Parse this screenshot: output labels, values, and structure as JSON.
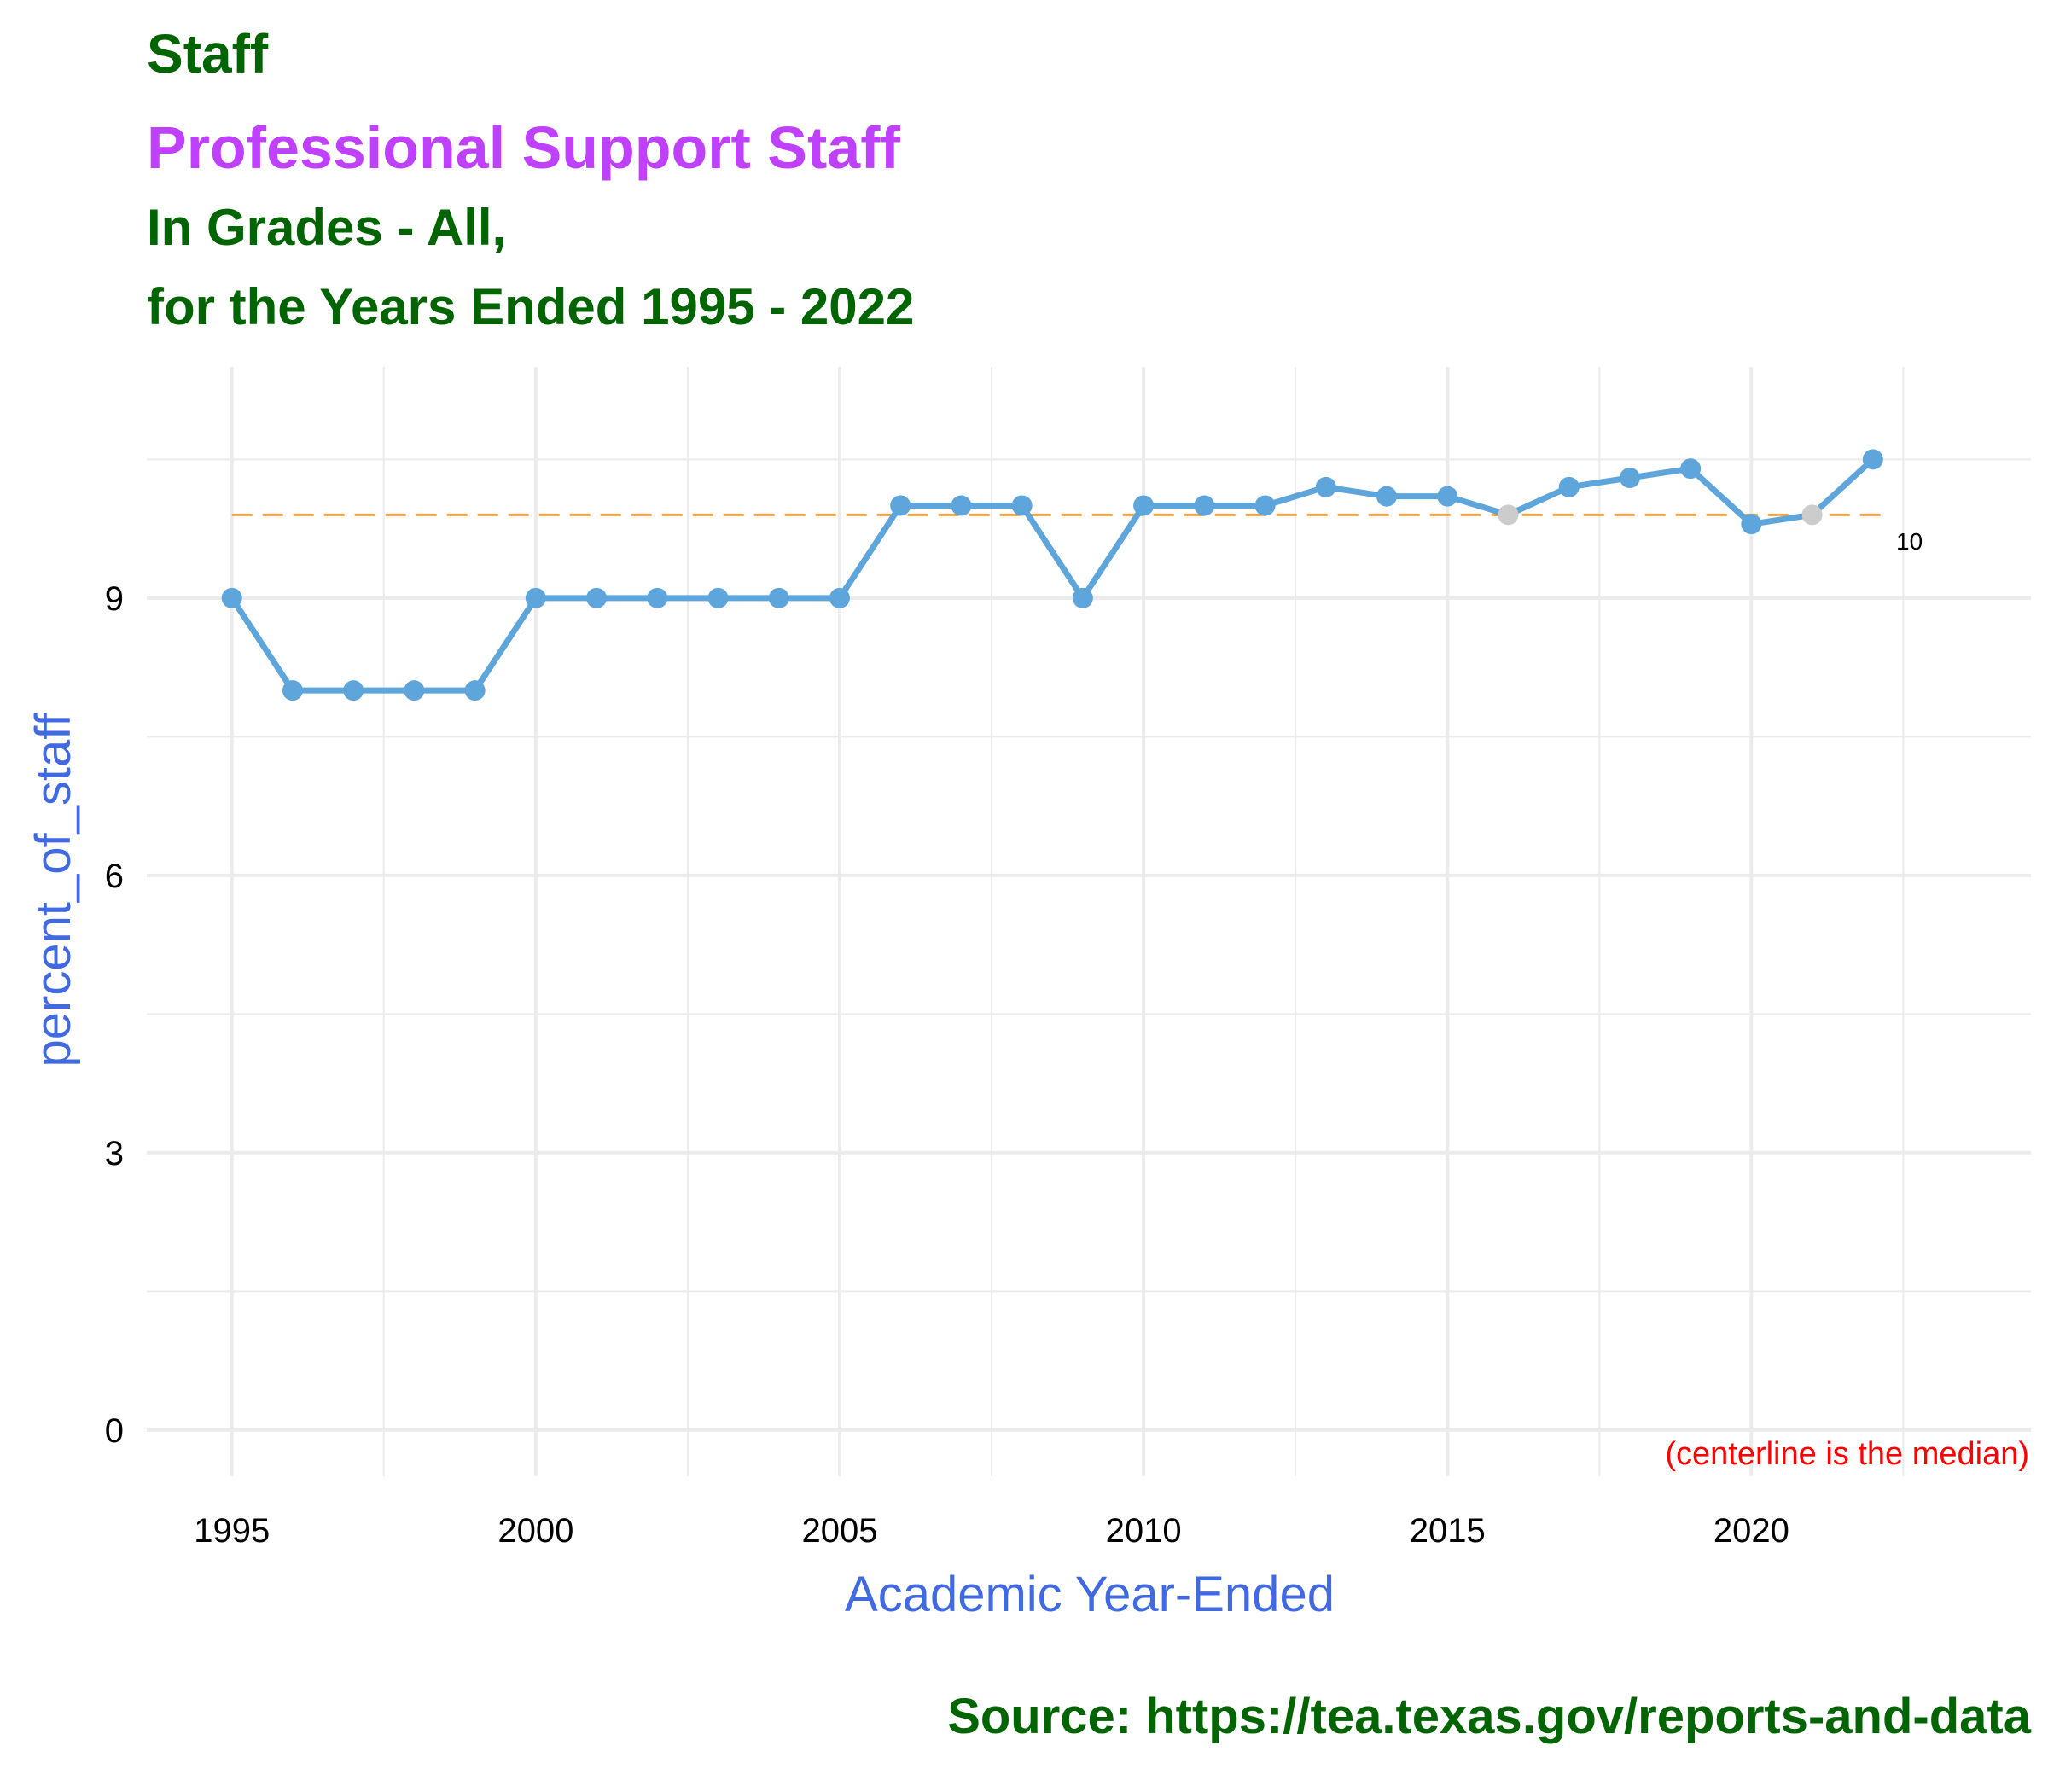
{
  "chart_data": {
    "type": "line",
    "title": "Staff",
    "subtitle": "Professional Support Staff",
    "subtitle2": "In Grades - All,",
    "subtitle3": "for the Years Ended 1995 - 2022",
    "xlabel": "Academic Year-Ended",
    "ylabel": "percent_of_staff",
    "caption": "Source:  https://tea.texas.gov/reports-and-data",
    "annotation": "(centerline is the median)",
    "median_label": "10",
    "median": 9.9,
    "xlim": [
      1993.6,
      2024.6
    ],
    "ylim": [
      -0.5,
      11.5
    ],
    "x_ticks": [
      1995,
      2000,
      2005,
      2010,
      2015,
      2020
    ],
    "x_tick_labels": [
      "1995",
      "2000",
      "2005",
      "2010",
      "2015",
      "2020"
    ],
    "y_ticks": [
      0,
      3,
      6,
      9
    ],
    "y_tick_labels": [
      "0",
      "3",
      "6",
      "9"
    ],
    "grid": true,
    "colors": {
      "title": "#006400",
      "subtitle": "#bf40ff",
      "axis_label": "#4169e1",
      "line": "#5da5da",
      "highlight_point": "#cccccc",
      "median_line": "#f5a442",
      "annotation": "#ff0000",
      "grid": "#ebebeb"
    },
    "series": [
      {
        "x": [
          1995,
          1996,
          1997,
          1998,
          1999,
          2000,
          2001,
          2002,
          2003,
          2004,
          2005,
          2006,
          2007,
          2008,
          2009,
          2010,
          2011,
          2012,
          2013,
          2014,
          2015,
          2016,
          2017,
          2018,
          2019,
          2020,
          2021,
          2022
        ],
        "y": [
          9,
          8,
          8,
          8,
          8,
          9,
          9,
          9,
          9,
          9,
          9,
          10,
          10,
          10,
          9,
          10,
          10,
          10,
          10.2,
          10.1,
          10.1,
          9.9,
          10.2,
          10.3,
          10.4,
          9.8,
          9.9,
          10.5
        ],
        "highlight": [
          false,
          false,
          false,
          false,
          false,
          false,
          false,
          false,
          false,
          false,
          false,
          false,
          false,
          false,
          false,
          false,
          false,
          false,
          false,
          false,
          false,
          true,
          false,
          false,
          false,
          false,
          true,
          false
        ]
      }
    ]
  }
}
